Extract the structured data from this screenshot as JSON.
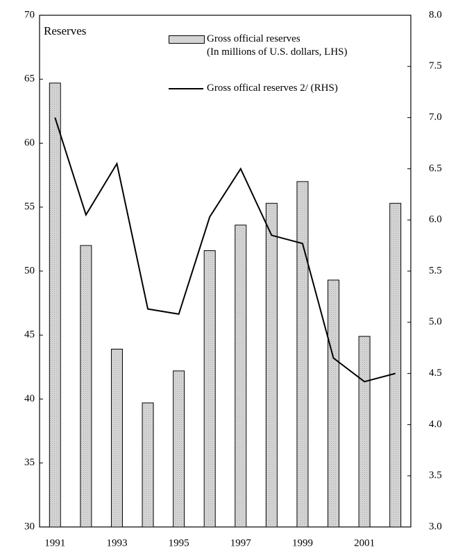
{
  "chart_data": {
    "type": "bar_line",
    "title": "Reserves",
    "categories": [
      "1991",
      null,
      "1993",
      null,
      "1995",
      null,
      "1997",
      null,
      "1999",
      null,
      "2001",
      null
    ],
    "series": [
      {
        "name": "Gross official reserves\n(In millions of U.S. dollars, LHS)",
        "type": "bar",
        "color": "#d4d4d4",
        "axis": "y",
        "values": [
          64.7,
          52.0,
          43.9,
          39.7,
          42.2,
          51.6,
          53.6,
          55.3,
          57.0,
          49.3,
          44.9,
          55.3
        ]
      },
      {
        "name": "Gross offical reserves 2/ (RHS)",
        "type": "line",
        "color": "#000000",
        "axis": "y2",
        "values": [
          7.0,
          6.05,
          6.55,
          5.13,
          5.08,
          6.03,
          6.5,
          5.85,
          5.77,
          4.65,
          4.42,
          4.5
        ]
      }
    ],
    "ylim": [
      30,
      70
    ],
    "yticks": [
      30,
      35,
      40,
      45,
      50,
      55,
      60,
      65,
      70
    ],
    "y2lim": [
      3,
      8
    ],
    "y2ticks": [
      {
        "value": 3,
        "label": "3.0"
      },
      {
        "value": 3.5,
        "label": "3.5"
      },
      {
        "value": 4,
        "label": "4.0"
      },
      {
        "value": 4.5,
        "label": "4.5"
      },
      {
        "value": 5,
        "label": "5.0"
      },
      {
        "value": 5.5,
        "label": "5.5"
      },
      {
        "value": 6,
        "label": "6.0"
      },
      {
        "value": 6.5,
        "label": "6.5"
      },
      {
        "value": 7,
        "label": "7.0"
      },
      {
        "value": 7.5,
        "label": "7.5"
      },
      {
        "value": 8,
        "label": "8.0"
      }
    ],
    "grid": false
  }
}
